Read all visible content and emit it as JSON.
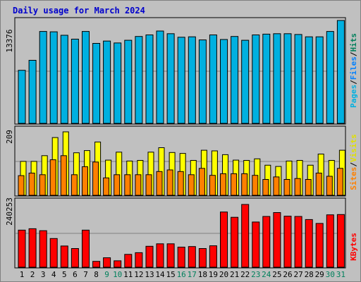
{
  "title": "Daily usage for March 2024",
  "colors": {
    "pages": "#00b0e0",
    "pages_top": "#007aa8",
    "files": "#0080ff",
    "hits": "#00805c",
    "sites": "#ff8000",
    "visits": "#ffff00",
    "kbytes": "#ff0000",
    "weekend_label": "#00805c",
    "weekday_label": "#000000",
    "panel_bg": "#c0c0c0",
    "grid": "#808080"
  },
  "chart_data": [
    {
      "type": "bar",
      "panel": "hits-files-pages",
      "categories": [
        "1",
        "2",
        "3",
        "4",
        "5",
        "6",
        "7",
        "8",
        "9",
        "10",
        "11",
        "12",
        "13",
        "14",
        "15",
        "16",
        "17",
        "18",
        "19",
        "20",
        "21",
        "22",
        "23",
        "24",
        "25",
        "26",
        "27",
        "28",
        "29",
        "30",
        "31"
      ],
      "y_max_label": "13376",
      "ylim": [
        0,
        13376
      ],
      "series": [
        {
          "name": "Pages",
          "values": [
            6900,
            8200,
            11950,
            11900,
            11450,
            10950,
            11950,
            10400,
            10700,
            10450,
            10800,
            11300,
            11500,
            12000,
            11650,
            11200,
            11250,
            10850,
            11500,
            10900,
            11300,
            10800,
            11500,
            11600,
            11650,
            11650,
            11550,
            11250,
            11250,
            11950,
            13376
          ]
        }
      ],
      "side_labels": [
        "Pages",
        "/",
        "Files",
        "/",
        "Hits"
      ]
    },
    {
      "type": "bar",
      "panel": "visits-sites",
      "categories": [
        "1",
        "2",
        "3",
        "4",
        "5",
        "6",
        "7",
        "8",
        "9",
        "10",
        "11",
        "12",
        "13",
        "14",
        "15",
        "16",
        "17",
        "18",
        "19",
        "20",
        "21",
        "22",
        "23",
        "24",
        "25",
        "26",
        "27",
        "28",
        "29",
        "30",
        "31"
      ],
      "y_max_label": "209",
      "ylim": [
        0,
        209
      ],
      "series": [
        {
          "name": "Visits",
          "values": [
            107,
            107,
            125,
            182,
            200,
            134,
            141,
            168,
            111,
            136,
            108,
            110,
            136,
            150,
            135,
            132,
            110,
            142,
            140,
            128,
            111,
            110,
            115,
            95,
            91,
            108,
            110,
            95,
            130,
            110,
            142
          ]
        },
        {
          "name": "Sites",
          "values": [
            62,
            70,
            65,
            112,
            125,
            65,
            90,
            105,
            55,
            65,
            65,
            65,
            65,
            75,
            80,
            75,
            65,
            85,
            63,
            68,
            68,
            68,
            63,
            50,
            58,
            50,
            53,
            50,
            70,
            60,
            85
          ]
        }
      ],
      "side_labels": [
        "Sites",
        "/",
        "Visits"
      ]
    },
    {
      "type": "bar",
      "panel": "kbytes",
      "categories": [
        "1",
        "2",
        "3",
        "4",
        "5",
        "6",
        "7",
        "8",
        "9",
        "10",
        "11",
        "12",
        "13",
        "14",
        "15",
        "16",
        "17",
        "18",
        "19",
        "20",
        "21",
        "22",
        "23",
        "24",
        "25",
        "26",
        "27",
        "28",
        "29",
        "30",
        "31"
      ],
      "y_max_label": "240253",
      "ylim": [
        0,
        240253
      ],
      "series": [
        {
          "name": "KBytes",
          "values": [
            133000,
            138000,
            131000,
            103000,
            76000,
            67000,
            133000,
            21000,
            34000,
            23000,
            46000,
            52000,
            75000,
            84000,
            84000,
            72000,
            74000,
            67000,
            77000,
            198000,
            179000,
            225000,
            162000,
            182000,
            196000,
            183000,
            182000,
            171000,
            157000,
            188000,
            189000
          ]
        }
      ],
      "side_labels": [
        "KBytes"
      ]
    }
  ],
  "weekend_days": [
    "9",
    "10",
    "16",
    "17",
    "23",
    "24",
    "30",
    "31"
  ]
}
